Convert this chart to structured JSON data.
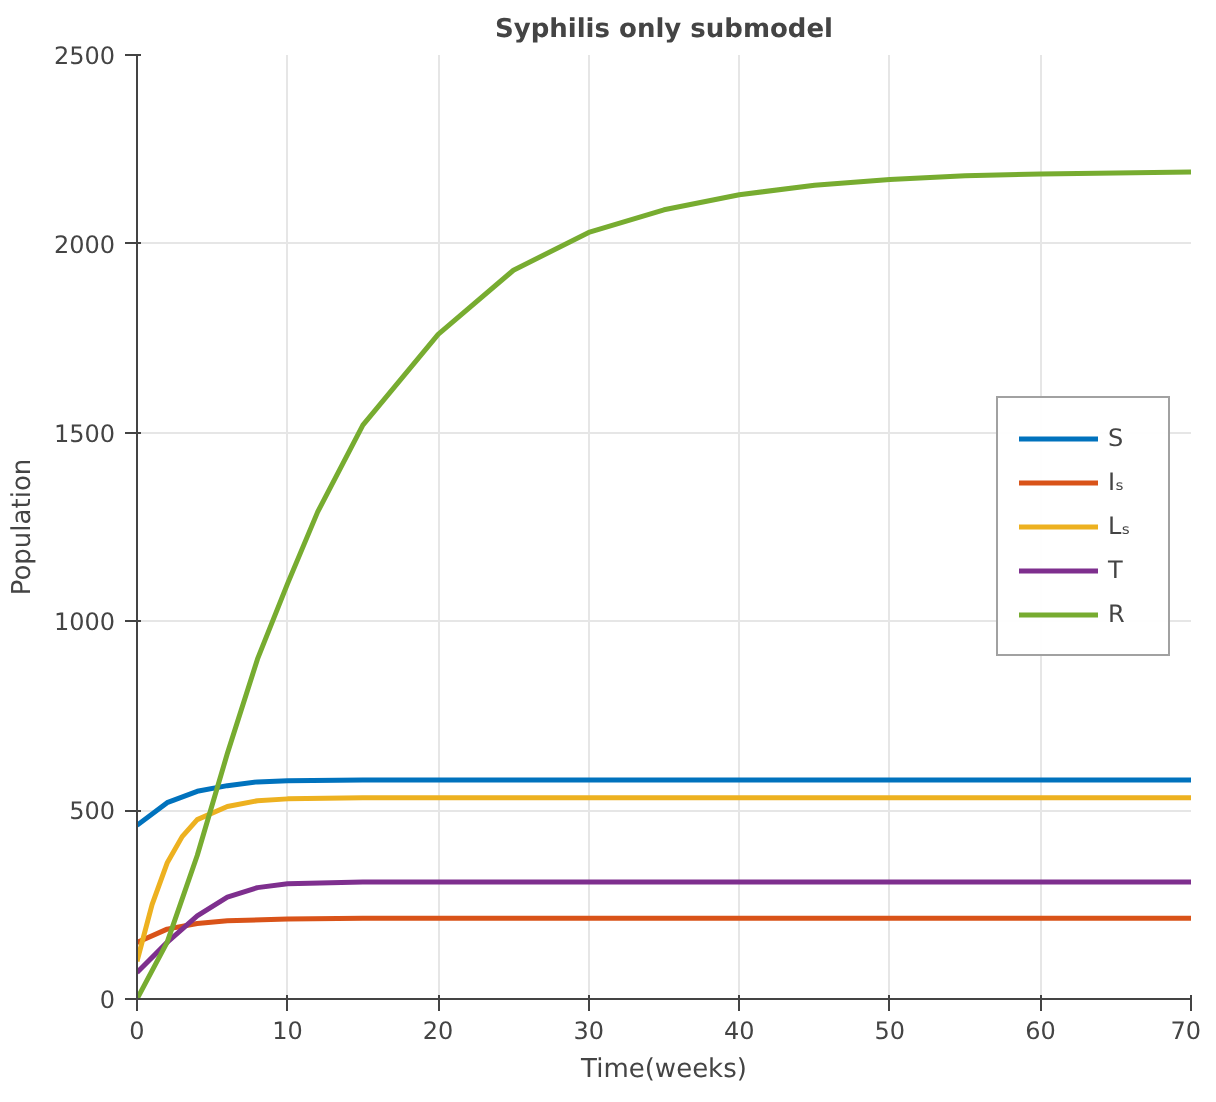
{
  "chart_data": {
    "type": "line",
    "title": "Syphilis only submodel",
    "xlabel": "Time(weeks)",
    "ylabel": "Population",
    "xlim": [
      0,
      70
    ],
    "ylim": [
      0,
      2500
    ],
    "xticks": [
      0,
      10,
      20,
      30,
      40,
      50,
      60,
      70
    ],
    "yticks": [
      0,
      500,
      1000,
      1500,
      2000,
      2500
    ],
    "grid": true,
    "legend": "right",
    "line_style": "solid",
    "marker": "none",
    "series": [
      {
        "name": "S",
        "color": "#0072bd",
        "x": [
          0,
          2,
          4,
          6,
          8,
          10,
          15,
          20,
          70
        ],
        "values": [
          460,
          520,
          550,
          565,
          575,
          578,
          580,
          580,
          580
        ]
      },
      {
        "name": "Iₛ",
        "color": "#d95319",
        "x": [
          0,
          2,
          4,
          6,
          10,
          15,
          20,
          70
        ],
        "values": [
          150,
          185,
          200,
          207,
          212,
          214,
          214,
          214
        ]
      },
      {
        "name": "Lₛ",
        "color": "#edb120",
        "x": [
          0,
          1,
          2,
          3,
          4,
          6,
          8,
          10,
          15,
          20,
          70
        ],
        "values": [
          100,
          250,
          360,
          430,
          475,
          510,
          525,
          530,
          533,
          533,
          533
        ]
      },
      {
        "name": "T",
        "color": "#7e2f8e",
        "x": [
          0,
          2,
          4,
          6,
          8,
          10,
          15,
          20,
          70
        ],
        "values": [
          70,
          150,
          220,
          270,
          295,
          305,
          310,
          310,
          310
        ]
      },
      {
        "name": "R",
        "color": "#77ac30",
        "x": [
          0,
          2,
          4,
          6,
          8,
          10,
          12,
          15,
          20,
          25,
          30,
          35,
          40,
          45,
          50,
          55,
          60,
          70
        ],
        "values": [
          0,
          150,
          380,
          650,
          900,
          1100,
          1290,
          1520,
          1760,
          1930,
          2030,
          2090,
          2130,
          2155,
          2170,
          2180,
          2185,
          2190
        ]
      }
    ]
  }
}
